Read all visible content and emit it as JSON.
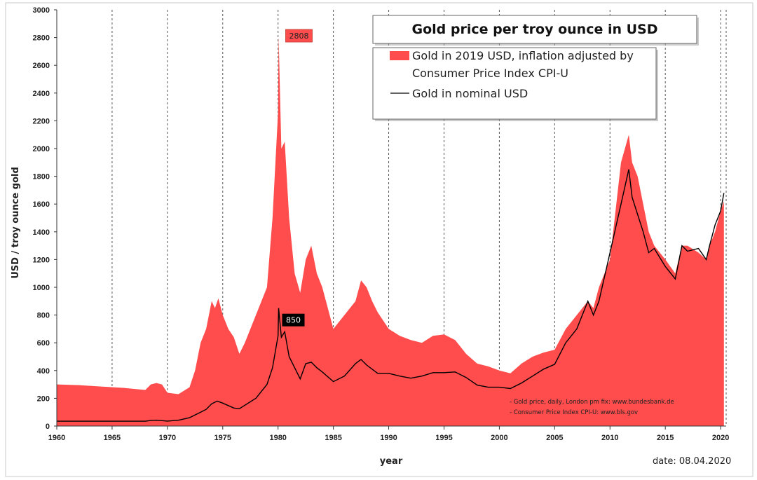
{
  "chart_data": {
    "type": "area",
    "title": "Gold price per troy ounce in USD",
    "xlabel": "year",
    "ylabel": "USD / troy ounce gold",
    "xlim": [
      1960,
      2020.5
    ],
    "ylim": [
      0,
      3000
    ],
    "x_ticks": [
      "1960",
      "1965",
      "1970",
      "1975",
      "1980",
      "1985",
      "1990",
      "1995",
      "2000",
      "2005",
      "2010",
      "2015",
      "2020"
    ],
    "y_ticks": [
      "0",
      "200",
      "400",
      "600",
      "800",
      "1000",
      "1200",
      "1400",
      "1600",
      "1800",
      "2000",
      "2200",
      "2400",
      "2600",
      "2800",
      "3000"
    ],
    "grid": "vertical dashed",
    "legend_position": "top-right",
    "colors": {
      "inflation_area": "#ff4c4c",
      "nominal_line": "#000000",
      "plot_bg": "#ffffff"
    },
    "series": [
      {
        "name": "Gold in 2019 USD, inflation adjusted by Consumer Price Index CPI-U",
        "kind": "area",
        "x": [
          1960,
          1962,
          1964,
          1966,
          1968,
          1968.5,
          1969,
          1969.5,
          1970,
          1971,
          1972,
          1972.5,
          1973,
          1973.5,
          1974,
          1974.3,
          1974.6,
          1975,
          1975.5,
          1976,
          1976.5,
          1977,
          1978,
          1979,
          1979.5,
          1980,
          1980.05,
          1980.3,
          1980.6,
          1981,
          1981.5,
          1982,
          1982.5,
          1983,
          1983.5,
          1984,
          1985,
          1986,
          1987,
          1987.5,
          1988,
          1988.5,
          1989,
          1990,
          1991,
          1992,
          1993,
          1994,
          1995,
          1996,
          1997,
          1998,
          1999,
          2000,
          2001,
          2002,
          2003,
          2004,
          2005,
          2006,
          2007,
          2008,
          2008.5,
          2009,
          2010,
          2011,
          2011.7,
          2012,
          2012.5,
          2013,
          2013.5,
          2014,
          2015,
          2015.9,
          2016.5,
          2017,
          2018,
          2018.7,
          2019,
          2019.5,
          2020,
          2020.3
        ],
        "values": [
          300,
          295,
          285,
          275,
          260,
          300,
          310,
          300,
          240,
          230,
          280,
          400,
          600,
          700,
          900,
          850,
          920,
          800,
          700,
          640,
          520,
          600,
          800,
          1000,
          1500,
          2260,
          2808,
          2000,
          2050,
          1500,
          1100,
          960,
          1200,
          1300,
          1100,
          1000,
          700,
          800,
          900,
          1050,
          1000,
          900,
          820,
          700,
          650,
          620,
          600,
          650,
          660,
          620,
          520,
          450,
          430,
          400,
          380,
          450,
          500,
          530,
          550,
          700,
          800,
          900,
          850,
          1000,
          1200,
          1900,
          2100,
          1900,
          1800,
          1600,
          1400,
          1300,
          1200,
          1100,
          1300,
          1300,
          1250,
          1200,
          1300,
          1400,
          1550,
          1620
        ]
      },
      {
        "name": "Gold in nominal USD",
        "kind": "line",
        "x": [
          1960,
          1962,
          1964,
          1966,
          1968,
          1968.5,
          1969,
          1970,
          1971,
          1972,
          1973,
          1973.5,
          1974,
          1974.5,
          1975,
          1976,
          1976.5,
          1977,
          1978,
          1979,
          1979.5,
          1980,
          1980.05,
          1980.3,
          1980.6,
          1981,
          1981.5,
          1982,
          1982.5,
          1983,
          1983.5,
          1984,
          1985,
          1986,
          1987,
          1987.5,
          1988,
          1989,
          1990,
          1991,
          1992,
          1993,
          1994,
          1995,
          1996,
          1997,
          1998,
          1999,
          2000,
          2001,
          2002,
          2003,
          2004,
          2005,
          2006,
          2007,
          2008,
          2008.5,
          2009,
          2010,
          2011,
          2011.7,
          2012,
          2013,
          2013.5,
          2014,
          2015,
          2015.9,
          2016.5,
          2017,
          2018,
          2018.7,
          2019,
          2019.5,
          2020,
          2020.3
        ],
        "values": [
          35,
          35,
          35,
          35,
          35,
          40,
          42,
          36,
          42,
          60,
          100,
          120,
          160,
          180,
          165,
          130,
          125,
          150,
          200,
          300,
          420,
          650,
          850,
          640,
          680,
          500,
          420,
          340,
          450,
          460,
          420,
          390,
          320,
          360,
          450,
          480,
          440,
          380,
          380,
          360,
          345,
          360,
          385,
          385,
          390,
          350,
          295,
          280,
          280,
          270,
          310,
          360,
          410,
          445,
          600,
          700,
          900,
          800,
          900,
          1250,
          1600,
          1850,
          1650,
          1400,
          1250,
          1280,
          1150,
          1060,
          1300,
          1260,
          1280,
          1200,
          1300,
          1450,
          1550,
          1680
        ]
      }
    ],
    "annotations": [
      {
        "label": "2808",
        "x": 1980.05,
        "y": 2808
      },
      {
        "label": "850",
        "x": 1980.05,
        "y": 850
      }
    ],
    "legend": {
      "area_label_line1": "Gold in 2019 USD, inflation adjusted by",
      "area_label_line2": "Consumer Price Index CPI-U",
      "line_label": "Gold in nominal USD"
    },
    "sources": [
      "- Gold price, daily, London pm fix: www.bundesbank.de",
      "- Consumer Price Index CPI-U: www.bls.gov"
    ],
    "date_note": "date: 08.04.2020"
  }
}
